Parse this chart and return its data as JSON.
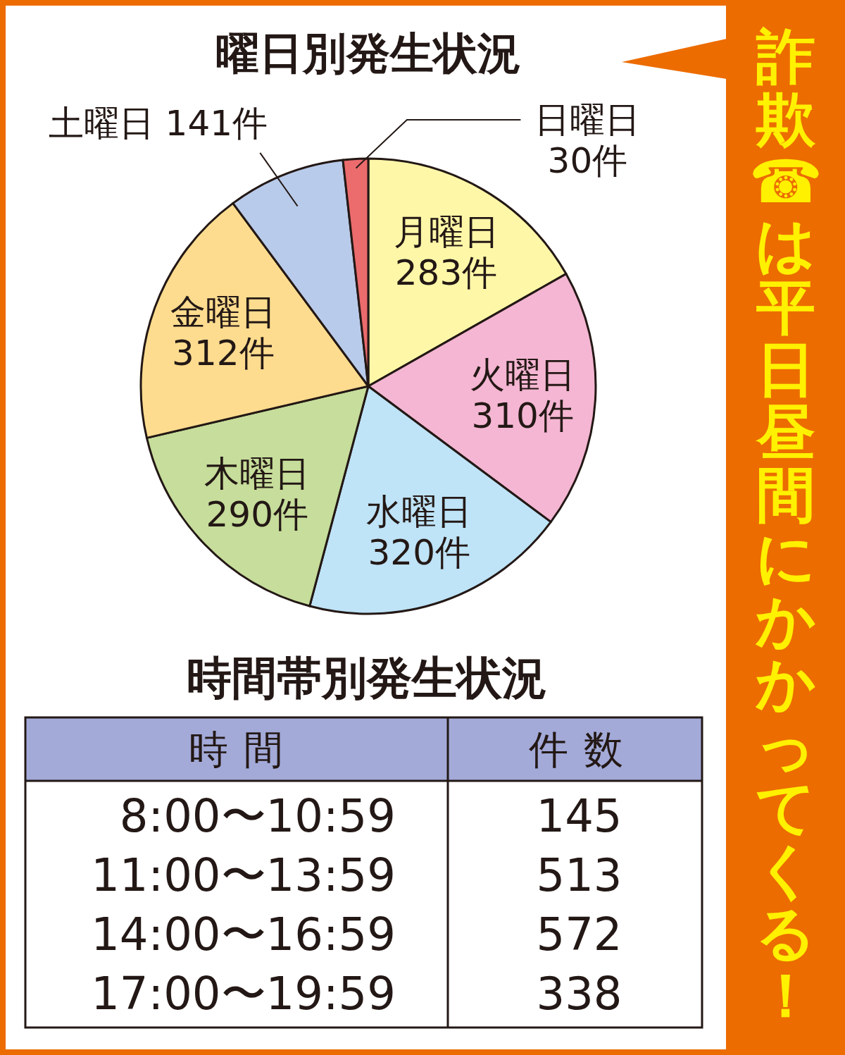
{
  "chart_data": [
    {
      "type": "pie",
      "title": "曜日別発生状況",
      "categories": [
        "月曜日",
        "火曜日",
        "水曜日",
        "木曜日",
        "金曜日",
        "土曜日",
        "日曜日"
      ],
      "values": [
        283,
        310,
        320,
        290,
        312,
        141,
        30
      ],
      "value_labels": [
        "283件",
        "310件",
        "320件",
        "290件",
        "312件",
        "141件",
        "30件"
      ],
      "colors": [
        "#fff7a8",
        "#f4b6d2",
        "#bfe3f7",
        "#c6dd9b",
        "#fddc8f",
        "#b9cbea",
        "#ec6b6d"
      ],
      "annotations": [
        "詐欺☎は平日昼間にかかってくる！"
      ]
    },
    {
      "type": "other",
      "title": "時間帯別発生状況",
      "xlabel": "時間",
      "ylabel": "件数",
      "categories": [
        "8:00〜10:59",
        "11:00〜13:59",
        "14:00〜16:59",
        "17:00〜19:59"
      ],
      "values": [
        145,
        513,
        572,
        338
      ],
      "data_labels": true
    }
  ]
}
